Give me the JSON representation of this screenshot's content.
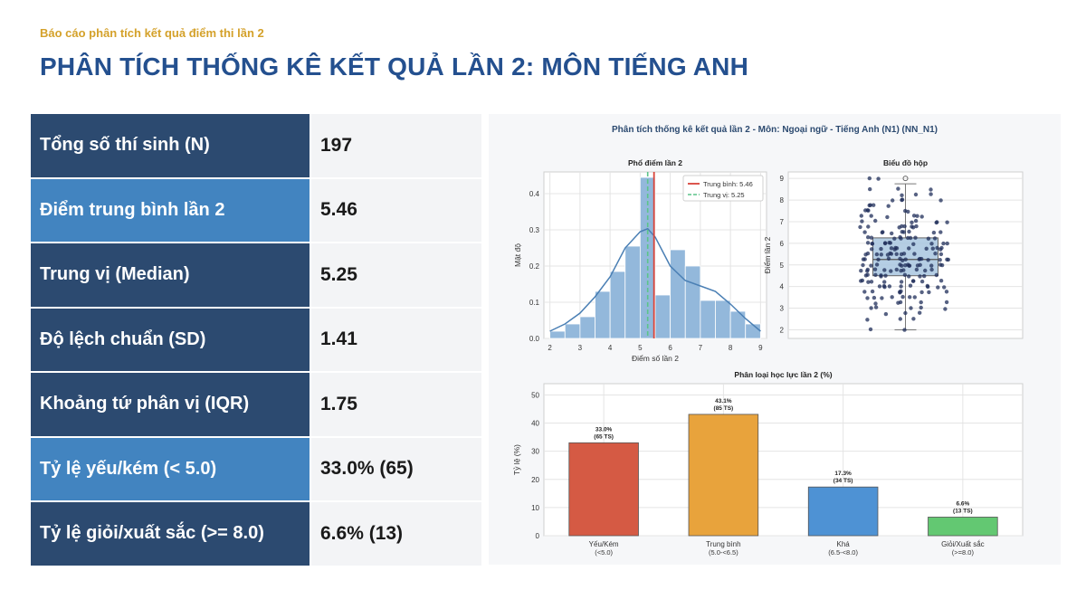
{
  "header": {
    "kicker": "Báo cáo phân tích kết quả điểm thi lần 2",
    "title": "PHÂN TÍCH THỐNG KÊ KẾT QUẢ LẦN 2: MÔN TIẾNG ANH"
  },
  "stats": [
    {
      "label": "Tổng số thí sinh (N)",
      "value": "197",
      "style": "dark"
    },
    {
      "label": "Điểm trung bình lần 2",
      "value": "5.46",
      "style": "light"
    },
    {
      "label": "Trung vị (Median)",
      "value": "5.25",
      "style": "dark"
    },
    {
      "label": "Độ lệch chuẩn (SD)",
      "value": "1.41",
      "style": "dark"
    },
    {
      "label": "Khoảng tứ phân vị (IQR)",
      "value": "1.75",
      "style": "dark"
    },
    {
      "label": "Tỷ lệ yếu/kém (< 5.0)",
      "value": "33.0% (65)",
      "style": "light"
    },
    {
      "label": "Tỷ lệ giỏi/xuất sắc (>= 8.0)",
      "value": "6.6% (13)",
      "style": "dark"
    }
  ],
  "figure_title": "Phân tích thống kê kết quả lần 2 - Môn: Ngoại ngữ - Tiếng Anh (N1) (NN_N1)",
  "chart_data": [
    {
      "type": "histogram",
      "title": "Phổ điểm lần 2",
      "xlabel": "Điểm số lần 2",
      "ylabel": "Mật độ",
      "xlim": [
        1.8,
        9.2
      ],
      "ylim": [
        0,
        0.46
      ],
      "xticks": [
        "2",
        "3",
        "4",
        "5",
        "6",
        "7",
        "8",
        "9"
      ],
      "yticks": [
        "0.0",
        "0.1",
        "0.2",
        "0.3",
        "0.4"
      ],
      "bin_width": 0.5,
      "bins": [
        {
          "x0": 2.0,
          "density": 0.02
        },
        {
          "x0": 2.5,
          "density": 0.04
        },
        {
          "x0": 3.0,
          "density": 0.06
        },
        {
          "x0": 3.5,
          "density": 0.13
        },
        {
          "x0": 4.0,
          "density": 0.185
        },
        {
          "x0": 4.5,
          "density": 0.255
        },
        {
          "x0": 5.0,
          "density": 0.445
        },
        {
          "x0": 5.5,
          "density": 0.12
        },
        {
          "x0": 6.0,
          "density": 0.245
        },
        {
          "x0": 6.5,
          "density": 0.2
        },
        {
          "x0": 7.0,
          "density": 0.105
        },
        {
          "x0": 7.5,
          "density": 0.105
        },
        {
          "x0": 8.0,
          "density": 0.075
        },
        {
          "x0": 8.5,
          "density": 0.04
        }
      ],
      "kde": [
        [
          2.0,
          0.02
        ],
        [
          2.5,
          0.04
        ],
        [
          3.0,
          0.07
        ],
        [
          3.5,
          0.115
        ],
        [
          4.0,
          0.17
        ],
        [
          4.5,
          0.25
        ],
        [
          5.0,
          0.295
        ],
        [
          5.25,
          0.303
        ],
        [
          5.5,
          0.28
        ],
        [
          6.0,
          0.2
        ],
        [
          6.5,
          0.16
        ],
        [
          7.0,
          0.145
        ],
        [
          7.5,
          0.13
        ],
        [
          8.0,
          0.095
        ],
        [
          8.5,
          0.055
        ],
        [
          9.0,
          0.02
        ]
      ],
      "mean": 5.46,
      "median": 5.25,
      "legend": [
        "Trung bình: 5.46",
        "Trung vị: 5.25"
      ],
      "legend_position": "top-right",
      "grid": true
    },
    {
      "type": "box",
      "title": "Biểu đồ hộp",
      "ylabel": "Điểm lần 2",
      "ylim": [
        1.6,
        9.3
      ],
      "yticks": [
        "2",
        "3",
        "4",
        "5",
        "6",
        "7",
        "8",
        "9"
      ],
      "min": 2.0,
      "q1": 4.5,
      "median": 5.25,
      "q3": 6.25,
      "max": 8.75,
      "outliers": [
        9.0
      ],
      "grid": true
    },
    {
      "type": "bar",
      "title": "Phân loại học lực lần 2 (%)",
      "ylabel": "Tỷ lệ (%)",
      "ylim": [
        0,
        54
      ],
      "yticks": [
        "0",
        "10",
        "20",
        "30",
        "40",
        "50"
      ],
      "categories": [
        [
          "Yếu/Kém",
          "(<5.0)"
        ],
        [
          "Trung bình",
          "(5.0-<6.5)"
        ],
        [
          "Khá",
          "(6.5-<8.0)"
        ],
        [
          "Giỏi/Xuất sắc",
          "(>=8.0)"
        ]
      ],
      "values": [
        33.0,
        43.1,
        17.3,
        6.6
      ],
      "labels": [
        [
          "33.0%",
          "(65 TS)"
        ],
        [
          "43.1%",
          "(85 TS)"
        ],
        [
          "17.3%",
          "(34 TS)"
        ],
        [
          "6.6%",
          "(13 TS)"
        ]
      ],
      "colors": [
        "#d55a44",
        "#e8a33c",
        "#4e92d4",
        "#63c872"
      ],
      "grid": true
    }
  ],
  "colors": {
    "mean_line": "#d9443a",
    "median_line": "#5cc48a",
    "hist_bar": "#93b8db",
    "kde_line": "#4a7fb4",
    "box_fill": "#a8c6df",
    "scatter_point": "#1f2e5a"
  }
}
